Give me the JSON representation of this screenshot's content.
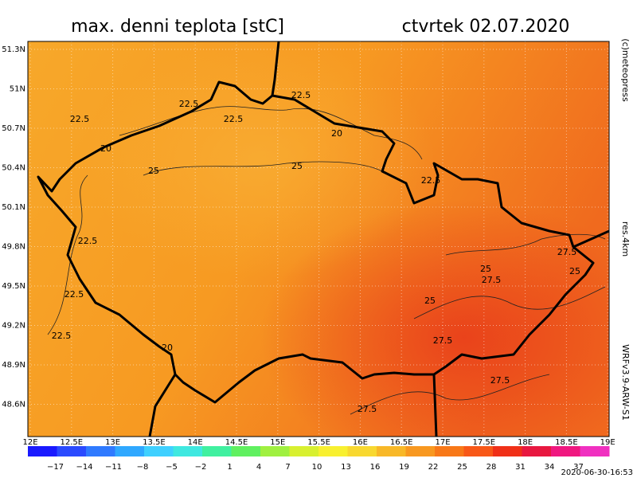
{
  "header": {
    "title": "max. denni teplota [stC]",
    "date": "ctvrtek 02.07.2020"
  },
  "side_labels": {
    "copyright": "(c)meteopress",
    "resolution": "res.4km",
    "model": "WRFv3.9-ARW-S1"
  },
  "map": {
    "lat_labels": [
      "51.3N",
      "51N",
      "50.7N",
      "50.4N",
      "50.1N",
      "49.8N",
      "49.5N",
      "49.2N",
      "48.9N",
      "48.6N"
    ],
    "lon_labels": [
      "12E",
      "12.5E",
      "13E",
      "13.5E",
      "14E",
      "14.5E",
      "15E",
      "15.5E",
      "16E",
      "16.5E",
      "17E",
      "17.5E",
      "18E",
      "18.5E",
      "19E"
    ],
    "contour_labels": [
      "22.5",
      "22.5",
      "22.5",
      "22.5",
      "20",
      "20",
      "25",
      "25",
      "22.5",
      "22.5",
      "22.5",
      "22.5",
      "20",
      "25",
      "27.5",
      "25",
      "27.5",
      "25",
      "27.5",
      "27.5",
      "27.5"
    ]
  },
  "legend": {
    "labels": [
      "−17",
      "−14",
      "−11",
      "−8",
      "−5",
      "−2",
      "1",
      "4",
      "7",
      "10",
      "13",
      "16",
      "19",
      "22",
      "25",
      "28",
      "31",
      "34",
      "37"
    ]
  },
  "footer": {
    "timestamp": "2020-06-30-16:53"
  }
}
